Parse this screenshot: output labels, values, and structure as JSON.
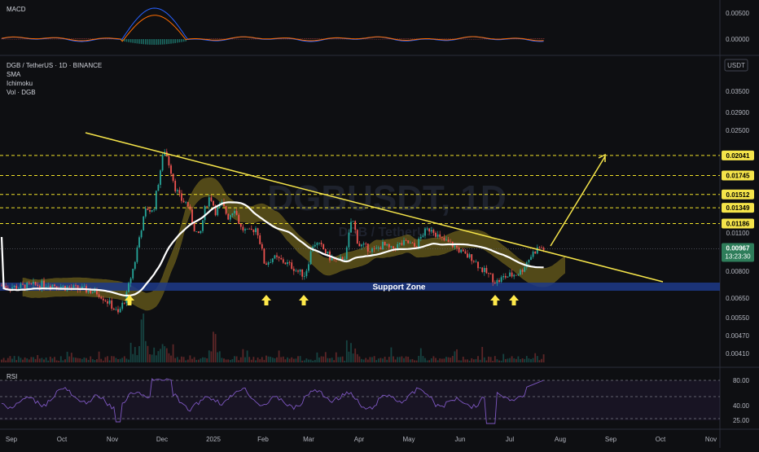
{
  "chart_data": {
    "type": "line",
    "title": "DGB / TetherUS · 1D · BINANCE",
    "indicators": [
      "SMA",
      "Ichimoku",
      "Vol · DGB"
    ],
    "currency_badge": "USDT",
    "watermark": "DGBUSDT, 1D",
    "watermark_sub": "DGB / TetherUS",
    "x_labels": [
      "Sep",
      "Oct",
      "Nov",
      "Dec",
      "2025",
      "Feb",
      "Mar",
      "Apr",
      "May",
      "Jun",
      "Jul",
      "Aug",
      "Sep",
      "Oct",
      "Nov"
    ],
    "price_ticks": [
      "0.03500",
      "0.02900",
      "0.02500",
      "0.01100",
      "0.00800",
      "0.00650",
      "0.00550",
      "0.00470",
      "0.00410"
    ],
    "macd": {
      "title": "MACD",
      "ticks": [
        "0.00500",
        "0.00000"
      ]
    },
    "rsi": {
      "title": "RSI",
      "ticks": [
        "80.00",
        "40.00",
        "25.00"
      ]
    },
    "resistance_levels": [
      "0.02041",
      "0.01745",
      "0.01512",
      "0.01349",
      "0.01186"
    ],
    "last_price": "0.00967",
    "countdown": "13:23:30",
    "support_zone_label": "Support Zone",
    "grid": false,
    "colors": {
      "background": "#0e0f12",
      "up_candle": "#26a69a",
      "down_candle": "#ef5350",
      "level_line": "#f0e12a",
      "trend_line": "#f5e44a",
      "sma": "#ffffff",
      "cloud": "#8a7a1e",
      "support_zone": "#1d3a8a",
      "arrow": "#ffe94a",
      "price_badge": "#f5e44a",
      "last_badge": "#2e7d5a",
      "rsi_line": "#7e57c2",
      "macd_line": "#2962ff",
      "signal_line": "#ff6d00"
    },
    "series": [
      {
        "name": "DGB / TetherUS",
        "price_path": [
          [
            0,
            0.0072
          ],
          [
            20,
            0.0071
          ],
          [
            40,
            0.0072
          ],
          [
            60,
            0.0073
          ],
          [
            80,
            0.0071
          ],
          [
            100,
            0.007
          ],
          [
            120,
            0.0068
          ],
          [
            135,
            0.0062
          ],
          [
            145,
            0.0057
          ],
          [
            155,
            0.0066
          ],
          [
            165,
            0.0085
          ],
          [
            172,
            0.011
          ],
          [
            180,
            0.0135
          ],
          [
            188,
            0.013
          ],
          [
            195,
            0.017
          ],
          [
            202,
            0.0215
          ],
          [
            208,
            0.019
          ],
          [
            215,
            0.016
          ],
          [
            222,
            0.0145
          ],
          [
            230,
            0.014
          ],
          [
            238,
            0.0115
          ],
          [
            245,
            0.0105
          ],
          [
            252,
            0.0135
          ],
          [
            258,
            0.015
          ],
          [
            265,
            0.013
          ],
          [
            272,
            0.014
          ],
          [
            280,
            0.0125
          ],
          [
            288,
            0.0135
          ],
          [
            295,
            0.0115
          ],
          [
            305,
            0.011
          ],
          [
            315,
            0.0115
          ],
          [
            325,
            0.0085
          ],
          [
            335,
            0.009
          ],
          [
            345,
            0.0088
          ],
          [
            355,
            0.0085
          ],
          [
            365,
            0.008
          ],
          [
            375,
            0.0078
          ],
          [
            385,
            0.0102
          ],
          [
            395,
            0.0098
          ],
          [
            405,
            0.009
          ],
          [
            415,
            0.0087
          ],
          [
            425,
            0.0092
          ],
          [
            432,
            0.0125
          ],
          [
            440,
            0.01
          ],
          [
            450,
            0.0098
          ],
          [
            460,
            0.0095
          ],
          [
            470,
            0.01
          ],
          [
            480,
            0.0096
          ],
          [
            490,
            0.01
          ],
          [
            500,
            0.0102
          ],
          [
            510,
            0.0098
          ],
          [
            520,
            0.011
          ],
          [
            530,
            0.0115
          ],
          [
            540,
            0.0105
          ],
          [
            550,
            0.0102
          ],
          [
            560,
            0.0098
          ],
          [
            570,
            0.0092
          ],
          [
            580,
            0.009
          ],
          [
            590,
            0.0082
          ],
          [
            600,
            0.0078
          ],
          [
            610,
            0.0074
          ],
          [
            620,
            0.0077
          ],
          [
            630,
            0.0078
          ],
          [
            640,
            0.008
          ],
          [
            648,
            0.0088
          ],
          [
            655,
            0.0094
          ],
          [
            662,
            0.0098
          ],
          [
            668,
            0.00967
          ]
        ]
      }
    ]
  }
}
